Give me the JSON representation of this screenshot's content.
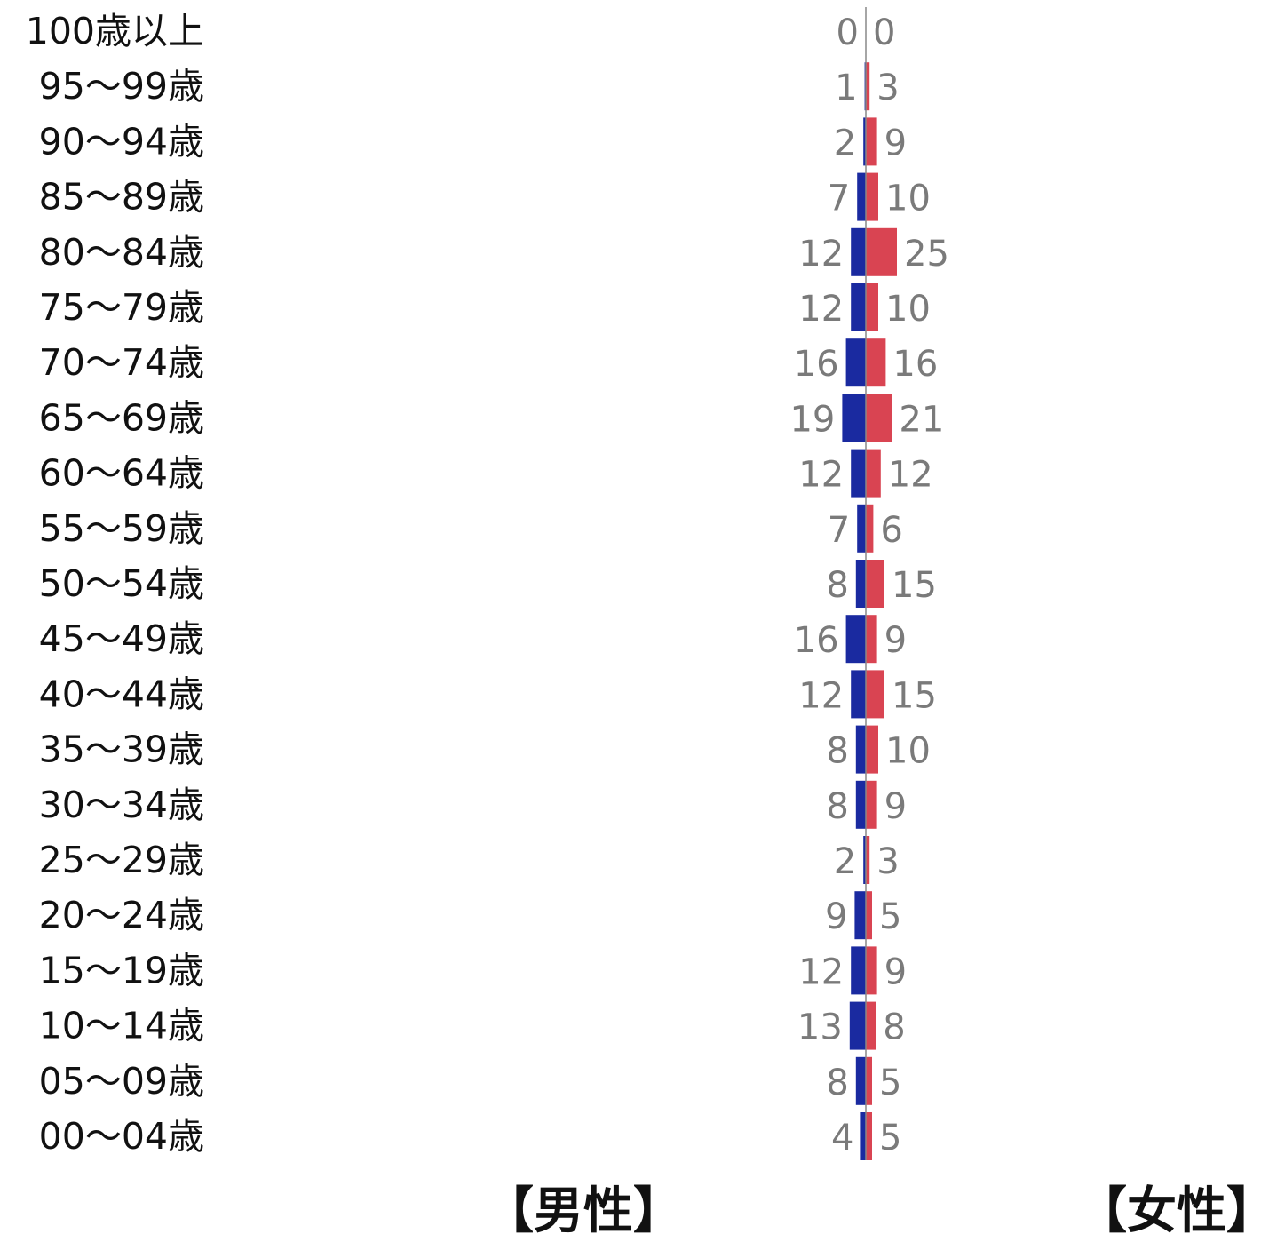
{
  "chart_data": {
    "type": "bar",
    "orientation": "horizontal-diverging",
    "categories": [
      "100歳以上",
      "95〜99歳",
      "90〜94歳",
      "85〜89歳",
      "80〜84歳",
      "75〜79歳",
      "70〜74歳",
      "65〜69歳",
      "60〜64歳",
      "55〜59歳",
      "50〜54歳",
      "45〜49歳",
      "40〜44歳",
      "35〜39歳",
      "30〜34歳",
      "25〜29歳",
      "20〜24歳",
      "15〜19歳",
      "10〜14歳",
      "05〜09歳",
      "00〜04歳"
    ],
    "series": [
      {
        "name": "【男性】",
        "side": "left",
        "color": "#1a2aa0",
        "values": [
          0,
          1,
          2,
          7,
          12,
          12,
          16,
          19,
          12,
          7,
          8,
          16,
          12,
          8,
          8,
          2,
          9,
          12,
          13,
          8,
          4
        ]
      },
      {
        "name": "【女性】",
        "side": "right",
        "color": "#d94452",
        "values": [
          0,
          3,
          9,
          10,
          25,
          10,
          16,
          21,
          12,
          6,
          15,
          9,
          15,
          10,
          9,
          3,
          5,
          9,
          8,
          5,
          5
        ]
      }
    ],
    "title": "",
    "xlabel": "",
    "ylabel": "",
    "grid": false,
    "legend": "bottom",
    "colors": {
      "axis": "#888888",
      "value_label": "#7a7a7a",
      "age_label": "#111111"
    }
  }
}
